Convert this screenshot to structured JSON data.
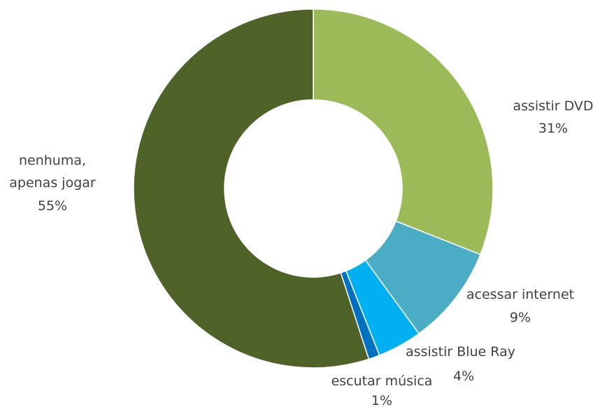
{
  "chart_data": {
    "type": "pie",
    "variant": "donut",
    "slices": [
      {
        "label": "assistir DVD",
        "value": 31,
        "display": "31%",
        "color": "#9BBB59"
      },
      {
        "label": "acessar internet",
        "value": 9,
        "display": "9%",
        "color": "#4BACC6"
      },
      {
        "label": "assistir Blue Ray",
        "value": 4,
        "display": "4%",
        "color": "#00B0F0"
      },
      {
        "label": "escutar música",
        "value": 1,
        "display": "1%",
        "color": "#0070C0"
      },
      {
        "label": "nenhuma, apenas jogar",
        "label_lines": [
          "nenhuma,",
          "apenas jogar"
        ],
        "value": 55,
        "display": "55%",
        "color": "#4F6228"
      }
    ],
    "start_angle_deg": 0,
    "direction": "clockwise",
    "legend": "none"
  }
}
